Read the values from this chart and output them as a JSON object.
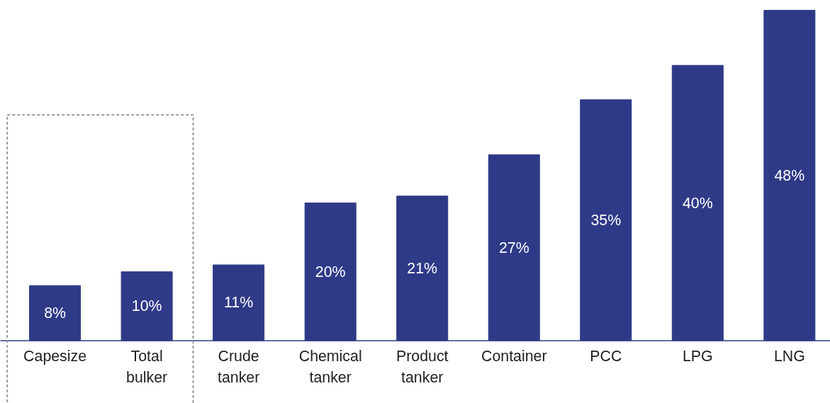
{
  "chart_data": {
    "type": "bar",
    "categories": [
      "Capesize",
      "Total bulker",
      "Crude tanker",
      "Chemical tanker",
      "Product tanker",
      "Container",
      "PCC",
      "LPG",
      "LNG"
    ],
    "values": [
      8,
      10,
      11,
      20,
      21,
      27,
      35,
      40,
      48
    ],
    "value_labels": [
      "8%",
      "10%",
      "11%",
      "20%",
      "21%",
      "27%",
      "35%",
      "40%",
      "48%"
    ],
    "color": "#2e3a87"
  }
}
